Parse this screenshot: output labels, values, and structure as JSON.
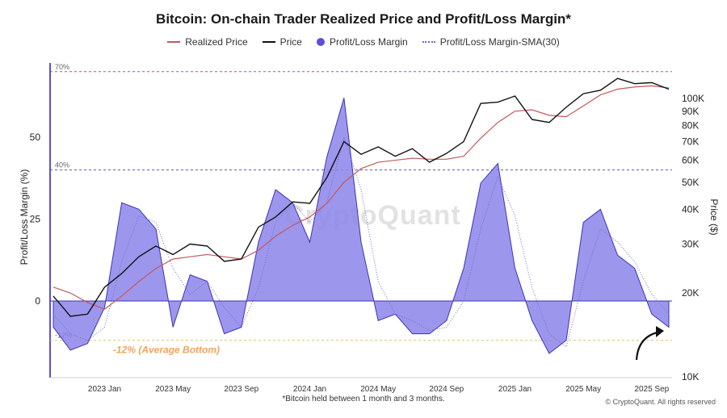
{
  "chart_data": {
    "type": "area",
    "title": "Bitcoin: On-chain Trader Realized Price and Profit/Loss Margin*",
    "legend": [
      {
        "name": "Realized Price",
        "color": "#c25a5a",
        "style": "line"
      },
      {
        "name": "Price",
        "color": "#111111",
        "style": "line"
      },
      {
        "name": "Profit/Loss Margin",
        "color": "#5b4fd6",
        "style": "dot"
      },
      {
        "name": "Profit/Loss Margin-SMA(30)",
        "color": "#6a6ad0",
        "style": "dotted"
      }
    ],
    "ylabel_left": "Profit/Loss Margin (%)",
    "ylabel_right": "Price ($)",
    "left_ticks": [
      "50",
      "25",
      "0"
    ],
    "right_ticks": [
      "100K",
      "90K",
      "80K",
      "70K",
      "60K",
      "50K",
      "40K",
      "30K",
      "20K",
      "10K"
    ],
    "x_ticks": [
      "2023 Jan",
      "2023 May",
      "2023 Sep",
      "2024 Jan",
      "2024 May",
      "2024 Sep",
      "2025 Jan",
      "2025 May",
      "2025 Sep"
    ],
    "ylim_left": [
      -20,
      70
    ],
    "ylim_right": [
      10000,
      125000
    ],
    "ref_lines": [
      {
        "label": "70%",
        "value": 70
      },
      {
        "label": "40%",
        "value": 40
      },
      {
        "label": "-12%",
        "value": -12
      }
    ],
    "annotation": "-12% (Average Bottom)",
    "series": [
      {
        "name": "Profit/Loss Margin",
        "unit": "%",
        "x": [
          "2022 Oct",
          "2022 Nov",
          "2022 Dec",
          "2023 Jan",
          "2023 Feb",
          "2023 Mar",
          "2023 Apr",
          "2023 May",
          "2023 Jun",
          "2023 Jul",
          "2023 Aug",
          "2023 Sep",
          "2023 Oct",
          "2023 Nov",
          "2023 Dec",
          "2024 Jan",
          "2024 Feb",
          "2024 Mar",
          "2024 Apr",
          "2024 May",
          "2024 Jun",
          "2024 Jul",
          "2024 Aug",
          "2024 Sep",
          "2024 Oct",
          "2024 Nov",
          "2024 Dec",
          "2025 Jan",
          "2025 Feb",
          "2025 Mar",
          "2025 Apr",
          "2025 May",
          "2025 Jun",
          "2025 Jul",
          "2025 Aug",
          "2025 Sep",
          "2025 Oct"
        ],
        "values": [
          -8,
          -15,
          -13,
          -2,
          30,
          28,
          22,
          -8,
          8,
          6,
          -10,
          -8,
          18,
          34,
          30,
          18,
          44,
          62,
          18,
          -6,
          -4,
          -10,
          -10,
          -6,
          10,
          36,
          42,
          10,
          -6,
          -16,
          -12,
          24,
          28,
          14,
          10,
          -4,
          -8
        ]
      },
      {
        "name": "Price",
        "unit": "USD",
        "x": [
          "2022 Oct",
          "2022 Nov",
          "2022 Dec",
          "2023 Jan",
          "2023 Feb",
          "2023 Mar",
          "2023 Apr",
          "2023 May",
          "2023 Jun",
          "2023 Jul",
          "2023 Aug",
          "2023 Sep",
          "2023 Oct",
          "2023 Nov",
          "2023 Dec",
          "2024 Jan",
          "2024 Feb",
          "2024 Mar",
          "2024 Apr",
          "2024 May",
          "2024 Jun",
          "2024 Jul",
          "2024 Aug",
          "2024 Sep",
          "2024 Oct",
          "2024 Nov",
          "2024 Dec",
          "2025 Jan",
          "2025 Feb",
          "2025 Mar",
          "2025 Apr",
          "2025 May",
          "2025 Jun",
          "2025 Jul",
          "2025 Aug",
          "2025 Sep",
          "2025 Oct"
        ],
        "values": [
          19500,
          16500,
          16800,
          21000,
          23500,
          27000,
          29500,
          27500,
          30000,
          29500,
          26000,
          26500,
          34500,
          37500,
          42500,
          42000,
          52000,
          70000,
          63000,
          67000,
          62000,
          66000,
          59000,
          63500,
          70000,
          96000,
          97000,
          102000,
          84000,
          82000,
          93000,
          104000,
          107000,
          118000,
          113000,
          114000,
          108000
        ]
      },
      {
        "name": "Realized Price",
        "unit": "USD",
        "x": [
          "2022 Oct",
          "2022 Nov",
          "2022 Dec",
          "2023 Jan",
          "2023 Feb",
          "2023 Mar",
          "2023 Apr",
          "2023 May",
          "2023 Jun",
          "2023 Jul",
          "2023 Aug",
          "2023 Sep",
          "2023 Oct",
          "2023 Nov",
          "2023 Dec",
          "2024 Jan",
          "2024 Feb",
          "2024 Mar",
          "2024 Apr",
          "2024 May",
          "2024 Jun",
          "2024 Jul",
          "2024 Aug",
          "2024 Sep",
          "2024 Oct",
          "2024 Nov",
          "2024 Dec",
          "2025 Jan",
          "2025 Feb",
          "2025 Mar",
          "2025 Apr",
          "2025 May",
          "2025 Jun",
          "2025 Jul",
          "2025 Aug",
          "2025 Sep",
          "2025 Oct"
        ],
        "values": [
          21000,
          20000,
          18500,
          17500,
          19500,
          22000,
          24500,
          26500,
          27000,
          27500,
          27000,
          26500,
          28500,
          32000,
          35000,
          37500,
          42000,
          50000,
          56000,
          59000,
          60000,
          61000,
          60500,
          60500,
          62000,
          72000,
          82000,
          90000,
          91000,
          87000,
          86000,
          94000,
          103000,
          108000,
          110000,
          111000,
          109000
        ]
      },
      {
        "name": "Profit/Loss Margin-SMA(30)",
        "unit": "%",
        "x": [
          "2022 Oct",
          "2022 Nov",
          "2022 Dec",
          "2023 Jan",
          "2023 Feb",
          "2023 Mar",
          "2023 Apr",
          "2023 May",
          "2023 Jun",
          "2023 Jul",
          "2023 Aug",
          "2023 Sep",
          "2023 Oct",
          "2023 Nov",
          "2023 Dec",
          "2024 Jan",
          "2024 Feb",
          "2024 Mar",
          "2024 Apr",
          "2024 May",
          "2024 Jun",
          "2024 Jul",
          "2024 Aug",
          "2024 Sep",
          "2024 Oct",
          "2024 Nov",
          "2024 Dec",
          "2025 Jan",
          "2025 Feb",
          "2025 Mar",
          "2025 Apr",
          "2025 May",
          "2025 Jun",
          "2025 Jul",
          "2025 Aug",
          "2025 Sep",
          "2025 Oct"
        ],
        "values": [
          -4,
          -10,
          -12,
          -8,
          12,
          26,
          24,
          10,
          2,
          6,
          -2,
          -8,
          4,
          24,
          30,
          24,
          30,
          50,
          34,
          6,
          -4,
          -6,
          -9,
          -8,
          0,
          22,
          38,
          26,
          4,
          -10,
          -14,
          6,
          22,
          18,
          12,
          2,
          -4
        ]
      }
    ]
  },
  "footnote": "*Bitcoin held between 1 month and 3 months.",
  "credit": "© CryptoQuant. All rights reserved",
  "watermark": "CryptoQuant"
}
